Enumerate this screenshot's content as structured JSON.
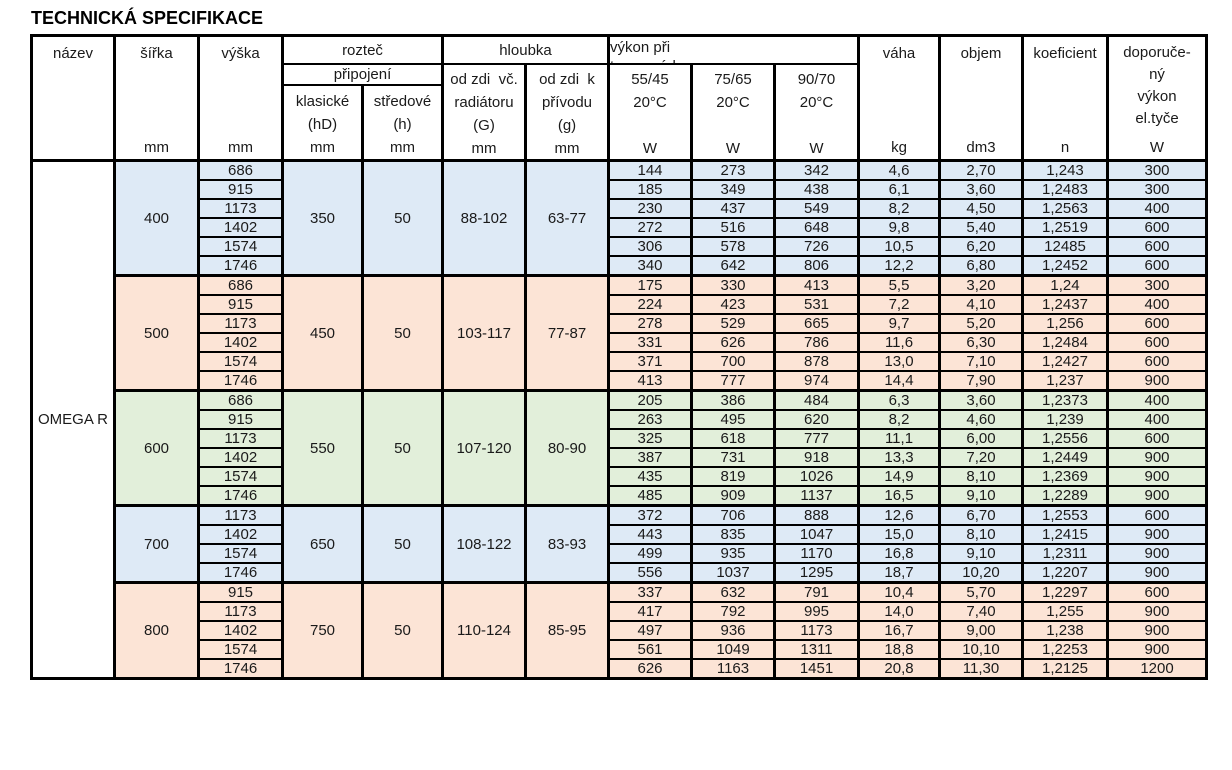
{
  "title": "TECHNICKÁ SPECIFIKACE",
  "table": {
    "product_name": "OMEGA R",
    "colors": {
      "blue": "#DEEAF6",
      "peach": "#FCE4D6",
      "green": "#E2EFDA",
      "border": "#000000"
    },
    "header": {
      "nazev": "název",
      "sirka": "šířka",
      "sirka_unit": "mm",
      "vyska": "výška",
      "vyska_unit": "mm",
      "roztec": "rozteč",
      "pripojeni": "připojení",
      "klasicke_title": "klasické\n(hD)",
      "klasicke_unit": "mm",
      "stredove_title": "středové\n(h)",
      "stredove_unit": "mm",
      "hloubka": "hloubka",
      "od_zdi_radiator_title": "od zdi  vč.\nradiátoru\n(G)",
      "od_zdi_radiator_unit": "mm",
      "od_zdi_privod_title": "od zdi  k\npřívodu\n(g)",
      "od_zdi_privod_unit": "mm",
      "vykon_pri": "výkon při\ntep.  spádu",
      "spad_55_45_title": "55/45\n20°C",
      "spad_55_45_unit": "W",
      "spad_75_65_title": "75/65\n20°C",
      "spad_75_65_unit": "W",
      "spad_90_70_title": "90/70\n20°C",
      "spad_90_70_unit": "W",
      "vaha": "váha",
      "vaha_unit": "kg",
      "objem": "objem",
      "objem_unit": "dm3",
      "koeficient": "koeficient",
      "koeficient_unit": "n",
      "doporuceny_title": "doporuče-\nný\nvýkon\nel.tyče",
      "doporuceny_unit": "W"
    },
    "row_fields": [
      "vyska_mm",
      "vykon_55_45_W",
      "vykon_75_65_W",
      "vykon_90_70_W",
      "vaha_kg",
      "objem_dm3",
      "koeficient_n",
      "doporuceny_vykon_W"
    ],
    "groups": [
      {
        "sirka": "400",
        "color_key": "blue",
        "klasicke": "350",
        "stredove": "50",
        "hloubka_G": "88-102",
        "hloubka_g": "63-77",
        "rows": [
          [
            "686",
            "144",
            "273",
            "342",
            "4,6",
            "2,70",
            "1,243",
            "300"
          ],
          [
            "915",
            "185",
            "349",
            "438",
            "6,1",
            "3,60",
            "1,2483",
            "300"
          ],
          [
            "1173",
            "230",
            "437",
            "549",
            "8,2",
            "4,50",
            "1,2563",
            "400"
          ],
          [
            "1402",
            "272",
            "516",
            "648",
            "9,8",
            "5,40",
            "1,2519",
            "600"
          ],
          [
            "1574",
            "306",
            "578",
            "726",
            "10,5",
            "6,20",
            "12485",
            "600"
          ],
          [
            "1746",
            "340",
            "642",
            "806",
            "12,2",
            "6,80",
            "1,2452",
            "600"
          ]
        ]
      },
      {
        "sirka": "500",
        "color_key": "peach",
        "klasicke": "450",
        "stredove": "50",
        "hloubka_G": "103-117",
        "hloubka_g": "77-87",
        "rows": [
          [
            "686",
            "175",
            "330",
            "413",
            "5,5",
            "3,20",
            "1,24",
            "300"
          ],
          [
            "915",
            "224",
            "423",
            "531",
            "7,2",
            "4,10",
            "1,2437",
            "400"
          ],
          [
            "1173",
            "278",
            "529",
            "665",
            "9,7",
            "5,20",
            "1,256",
            "600"
          ],
          [
            "1402",
            "331",
            "626",
            "786",
            "11,6",
            "6,30",
            "1,2484",
            "600"
          ],
          [
            "1574",
            "371",
            "700",
            "878",
            "13,0",
            "7,10",
            "1,2427",
            "600"
          ],
          [
            "1746",
            "413",
            "777",
            "974",
            "14,4",
            "7,90",
            "1,237",
            "900"
          ]
        ]
      },
      {
        "sirka": "600",
        "color_key": "green",
        "klasicke": "550",
        "stredove": "50",
        "hloubka_G": "107-120",
        "hloubka_g": "80-90",
        "rows": [
          [
            "686",
            "205",
            "386",
            "484",
            "6,3",
            "3,60",
            "1,2373",
            "400"
          ],
          [
            "915",
            "263",
            "495",
            "620",
            "8,2",
            "4,60",
            "1,239",
            "400"
          ],
          [
            "1173",
            "325",
            "618",
            "777",
            "11,1",
            "6,00",
            "1,2556",
            "600"
          ],
          [
            "1402",
            "387",
            "731",
            "918",
            "13,3",
            "7,20",
            "1,2449",
            "900"
          ],
          [
            "1574",
            "435",
            "819",
            "1026",
            "14,9",
            "8,10",
            "1,2369",
            "900"
          ],
          [
            "1746",
            "485",
            "909",
            "1137",
            "16,5",
            "9,10",
            "1,2289",
            "900"
          ]
        ]
      },
      {
        "sirka": "700",
        "color_key": "blue",
        "klasicke": "650",
        "stredove": "50",
        "hloubka_G": "108-122",
        "hloubka_g": "83-93",
        "rows": [
          [
            "1173",
            "372",
            "706",
            "888",
            "12,6",
            "6,70",
            "1,2553",
            "600"
          ],
          [
            "1402",
            "443",
            "835",
            "1047",
            "15,0",
            "8,10",
            "1,2415",
            "900"
          ],
          [
            "1574",
            "499",
            "935",
            "1170",
            "16,8",
            "9,10",
            "1,2311",
            "900"
          ],
          [
            "1746",
            "556",
            "1037",
            "1295",
            "18,7",
            "10,20",
            "1,2207",
            "900"
          ]
        ]
      },
      {
        "sirka": "800",
        "color_key": "peach",
        "klasicke": "750",
        "stredove": "50",
        "hloubka_G": "110-124",
        "hloubka_g": "85-95",
        "rows": [
          [
            "915",
            "337",
            "632",
            "791",
            "10,4",
            "5,70",
            "1,2297",
            "600"
          ],
          [
            "1173",
            "417",
            "792",
            "995",
            "14,0",
            "7,40",
            "1,255",
            "900"
          ],
          [
            "1402",
            "497",
            "936",
            "1173",
            "16,7",
            "9,00",
            "1,238",
            "900"
          ],
          [
            "1574",
            "561",
            "1049",
            "1311",
            "18,8",
            "10,10",
            "1,2253",
            "900"
          ],
          [
            "1746",
            "626",
            "1163",
            "1451",
            "20,8",
            "11,30",
            "1,2125",
            "1200"
          ]
        ]
      }
    ]
  }
}
